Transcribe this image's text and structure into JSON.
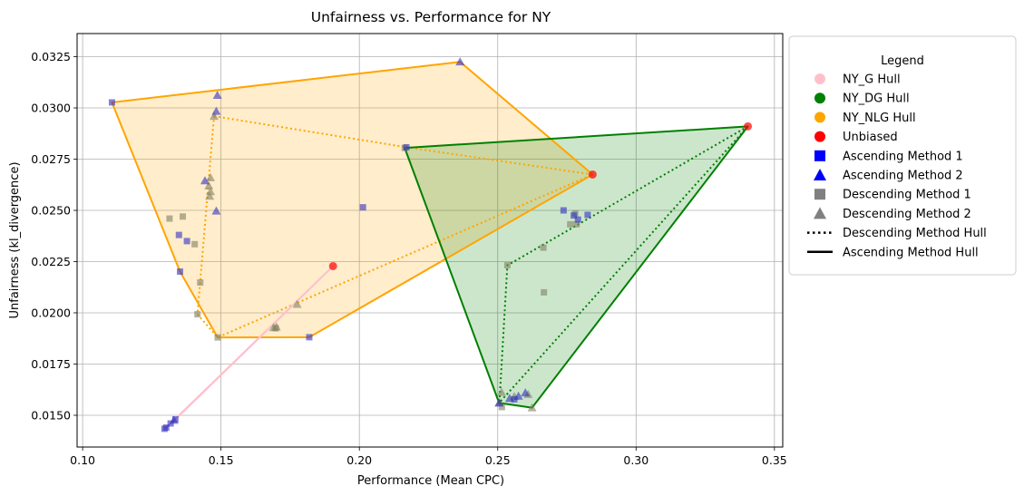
{
  "chart_data": {
    "type": "scatter",
    "title": "Unfairness vs. Performance for NY",
    "xlabel": "Performance (Mean CPC)",
    "ylabel": "Unfairness (kl_divergence)",
    "xlim": [
      0.098,
      0.353
    ],
    "ylim": [
      0.01345,
      0.03363
    ],
    "xticks": [
      0.1,
      0.15,
      0.2,
      0.25,
      0.3,
      0.35
    ],
    "xtick_labels": [
      "0.10",
      "0.15",
      "0.20",
      "0.25",
      "0.30",
      "0.35"
    ],
    "yticks": [
      0.015,
      0.0175,
      0.02,
      0.0225,
      0.025,
      0.0275,
      0.03,
      0.0325
    ],
    "ytick_labels": [
      "0.0150",
      "0.0175",
      "0.0200",
      "0.0225",
      "0.0250",
      "0.0275",
      "0.0300",
      "0.0325"
    ],
    "grid": true,
    "legend": {
      "title": "Legend",
      "placement": "outside right",
      "entries": [
        {
          "label": "NY_G Hull",
          "marker": "circle",
          "color": "#ffc0cb"
        },
        {
          "label": "NY_DG Hull",
          "marker": "circle",
          "color": "#008000"
        },
        {
          "label": "NY_NLG Hull",
          "marker": "circle",
          "color": "#ffa500"
        },
        {
          "label": "Unbiased",
          "marker": "circle",
          "color": "#ff0000"
        },
        {
          "label": "Ascending Method 1",
          "marker": "square",
          "color": "#0000ff"
        },
        {
          "label": "Ascending Method 2",
          "marker": "triangle",
          "color": "#0000ff"
        },
        {
          "label": "Descending Method 1",
          "marker": "square",
          "color": "#808080"
        },
        {
          "label": "Descending Method 2",
          "marker": "triangle",
          "color": "#808080"
        },
        {
          "label": "Descending Method Hull",
          "marker": "dotted-line",
          "color": "#000000"
        },
        {
          "label": "Ascending Method Hull",
          "marker": "solid-line",
          "color": "#000000"
        }
      ]
    },
    "hulls": [
      {
        "group": "NY_NLG",
        "color": "#ffa500",
        "ascending_hull": [
          [
            0.1106,
            0.03027
          ],
          [
            0.2364,
            0.03225
          ],
          [
            0.2843,
            0.02675
          ],
          [
            0.1819,
            0.01881
          ],
          [
            0.1488,
            0.0188
          ],
          [
            0.1352,
            0.02201
          ]
        ],
        "descending_hull": [
          [
            0.1475,
            0.0296
          ],
          [
            0.217,
            0.02808
          ],
          [
            0.2843,
            0.02675
          ],
          [
            0.1488,
            0.0188
          ],
          [
            0.1415,
            0.01993
          ]
        ]
      },
      {
        "group": "NY_DG",
        "color": "#008000",
        "ascending_hull": [
          [
            0.2164,
            0.02805
          ],
          [
            0.3404,
            0.0291
          ],
          [
            0.2624,
            0.01537
          ],
          [
            0.2505,
            0.0156
          ]
        ],
        "descending_hull": [
          [
            0.3404,
            0.0291
          ],
          [
            0.2535,
            0.02232
          ],
          [
            0.2506,
            0.01562
          ]
        ]
      },
      {
        "group": "NY_G",
        "color": "#ffc0cb",
        "ascending_hull": [
          [
            0.13,
            0.01437
          ],
          [
            0.1905,
            0.02228
          ],
          [
            0.1343,
            0.0149
          ]
        ]
      }
    ],
    "unbiased": [
      {
        "x": 0.1905,
        "y": 0.02228
      },
      {
        "x": 0.2843,
        "y": 0.02675
      },
      {
        "x": 0.3404,
        "y": 0.0291
      }
    ],
    "ascending_method_1": [
      {
        "x": 0.1106,
        "y": 0.03027
      },
      {
        "x": 0.1348,
        "y": 0.0238
      },
      {
        "x": 0.1377,
        "y": 0.0235
      },
      {
        "x": 0.1352,
        "y": 0.02201
      },
      {
        "x": 0.1819,
        "y": 0.01881
      },
      {
        "x": 0.2013,
        "y": 0.02515
      },
      {
        "x": 0.217,
        "y": 0.02808
      },
      {
        "x": 0.2738,
        "y": 0.025
      },
      {
        "x": 0.2775,
        "y": 0.02475
      },
      {
        "x": 0.279,
        "y": 0.02455
      },
      {
        "x": 0.2825,
        "y": 0.02478
      },
      {
        "x": 0.1302,
        "y": 0.0144
      },
      {
        "x": 0.1318,
        "y": 0.0146
      },
      {
        "x": 0.1335,
        "y": 0.0148
      },
      {
        "x": 0.1296,
        "y": 0.01434
      },
      {
        "x": 0.256,
        "y": 0.01578
      }
    ],
    "ascending_method_2": [
      {
        "x": 0.2364,
        "y": 0.03225
      },
      {
        "x": 0.1487,
        "y": 0.03062
      },
      {
        "x": 0.1483,
        "y": 0.02984
      },
      {
        "x": 0.1442,
        "y": 0.02645
      },
      {
        "x": 0.1483,
        "y": 0.02497
      },
      {
        "x": 0.2505,
        "y": 0.0156
      },
      {
        "x": 0.2543,
        "y": 0.01583
      },
      {
        "x": 0.2575,
        "y": 0.01594
      },
      {
        "x": 0.26,
        "y": 0.0161
      },
      {
        "x": 0.133,
        "y": 0.01476
      }
    ],
    "descending_method_1": [
      {
        "x": 0.1314,
        "y": 0.0246
      },
      {
        "x": 0.1362,
        "y": 0.0247
      },
      {
        "x": 0.1405,
        "y": 0.02335
      },
      {
        "x": 0.1425,
        "y": 0.02148
      },
      {
        "x": 0.1415,
        "y": 0.01993
      },
      {
        "x": 0.1488,
        "y": 0.0188
      },
      {
        "x": 0.2164,
        "y": 0.02805
      },
      {
        "x": 0.2535,
        "y": 0.02232
      },
      {
        "x": 0.2665,
        "y": 0.02318
      },
      {
        "x": 0.2667,
        "y": 0.021
      },
      {
        "x": 0.2762,
        "y": 0.02432
      },
      {
        "x": 0.2785,
        "y": 0.02432
      },
      {
        "x": 0.278,
        "y": 0.02485
      },
      {
        "x": 0.2515,
        "y": 0.0154
      },
      {
        "x": 0.1698,
        "y": 0.01925
      }
    ],
    "descending_method_2": [
      {
        "x": 0.1475,
        "y": 0.0296
      },
      {
        "x": 0.1462,
        "y": 0.0266
      },
      {
        "x": 0.1456,
        "y": 0.0262
      },
      {
        "x": 0.1462,
        "y": 0.02592
      },
      {
        "x": 0.1459,
        "y": 0.0257
      },
      {
        "x": 0.1775,
        "y": 0.02042
      },
      {
        "x": 0.17,
        "y": 0.01932
      },
      {
        "x": 0.169,
        "y": 0.01928
      },
      {
        "x": 0.2506,
        "y": 0.01562
      },
      {
        "x": 0.2514,
        "y": 0.01612
      },
      {
        "x": 0.256,
        "y": 0.01592
      },
      {
        "x": 0.261,
        "y": 0.01602
      },
      {
        "x": 0.2624,
        "y": 0.01537
      }
    ]
  }
}
